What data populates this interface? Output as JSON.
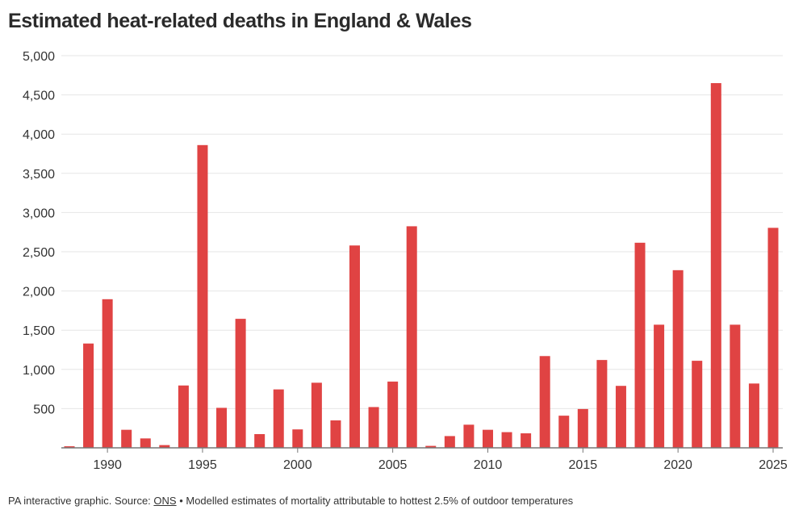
{
  "title": "Estimated heat-related deaths in England & Wales",
  "footer": {
    "prefix": "PA interactive graphic. Source: ",
    "source_link": "ONS",
    "suffix": " • Modelled estimates of mortality attributable to hottest 2.5% of outdoor temperatures"
  },
  "colors": {
    "bar": "#e04343",
    "grid": "#e6e6e6",
    "axis": "#777777"
  },
  "chart_data": {
    "type": "bar",
    "title": "Estimated heat-related deaths in England & Wales",
    "xlabel": "",
    "ylabel": "",
    "x": [
      1988,
      1989,
      1990,
      1991,
      1992,
      1993,
      1994,
      1995,
      1996,
      1997,
      1998,
      1999,
      2000,
      2001,
      2002,
      2003,
      2004,
      2005,
      2006,
      2007,
      2008,
      2009,
      2010,
      2011,
      2012,
      2013,
      2014,
      2015,
      2016,
      2017,
      2018,
      2019,
      2020,
      2021,
      2022,
      2023,
      2024,
      2025
    ],
    "values": [
      20,
      1330,
      1895,
      230,
      120,
      35,
      795,
      3860,
      510,
      1645,
      175,
      745,
      235,
      830,
      350,
      2580,
      520,
      845,
      2825,
      25,
      150,
      295,
      230,
      200,
      185,
      1170,
      410,
      495,
      1120,
      790,
      2615,
      1570,
      2265,
      1110,
      4650,
      1570,
      820,
      2805
    ],
    "xticks": [
      "1990",
      "1995",
      "2000",
      "2005",
      "2010",
      "2015",
      "2020",
      "2025"
    ],
    "yticks": [
      "500",
      "1,000",
      "1,500",
      "2,000",
      "2,500",
      "3,000",
      "3,500",
      "4,000",
      "4,500",
      "5,000"
    ],
    "ylim": [
      0,
      5000
    ],
    "grid": true
  }
}
